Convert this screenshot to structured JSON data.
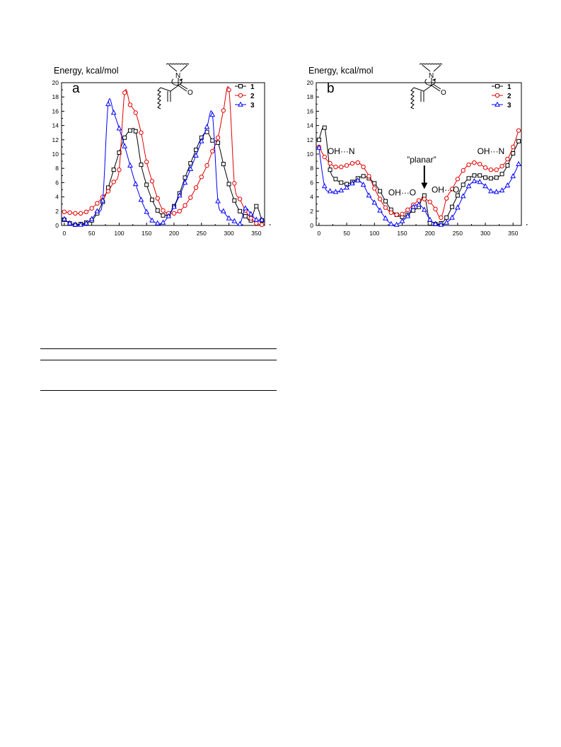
{
  "chart_data": [
    {
      "type": "line",
      "panel_label": "a",
      "ylabel": "Energy, kcal/mol",
      "xlim": [
        -5,
        365
      ],
      "ylim": [
        0,
        20
      ],
      "x_ticks": [
        "0",
        "50",
        "100",
        "150",
        "200",
        "250",
        "300",
        "350"
      ],
      "y_ticks": [
        "0",
        "2",
        "4",
        "6",
        "8",
        "10",
        "12",
        "14",
        "16",
        "18",
        "20"
      ],
      "legend": {
        "position": "top-right",
        "entries": [
          "1",
          "2",
          "3"
        ]
      },
      "series": [
        {
          "name": "1",
          "color": "#000000",
          "marker": "square",
          "x": [
            0,
            10,
            20,
            30,
            40,
            50,
            60,
            70,
            80,
            90,
            100,
            110,
            120,
            130,
            140,
            150,
            160,
            170,
            180,
            190,
            200,
            210,
            220,
            230,
            240,
            250,
            260,
            270,
            280,
            290,
            300,
            310,
            320,
            330,
            340,
            350,
            360
          ],
          "y": [
            0.8,
            0.3,
            0.1,
            0.2,
            0.4,
            0.7,
            1.7,
            3.3,
            5.3,
            7.8,
            10.2,
            12.3,
            13.3,
            13.2,
            8.5,
            5.7,
            3.6,
            2.1,
            1.4,
            1.6,
            2.7,
            4.5,
            6.7,
            8.7,
            10.6,
            12.3,
            13.1,
            11.9,
            11.6,
            8.6,
            5.8,
            3.5,
            2.0,
            1.3,
            0.7,
            2.7,
            0.7
          ]
        },
        {
          "name": "2",
          "color": "#e00000",
          "marker": "circle",
          "x": [
            0,
            10,
            20,
            30,
            40,
            50,
            60,
            70,
            80,
            90,
            100,
            110,
            120,
            130,
            140,
            150,
            160,
            170,
            180,
            190,
            200,
            210,
            220,
            230,
            240,
            250,
            260,
            270,
            280,
            290,
            300,
            310,
            320,
            330,
            340,
            350,
            360
          ],
          "y": [
            1.9,
            1.8,
            1.7,
            1.7,
            1.9,
            2.4,
            3.1,
            4.0,
            4.8,
            6.1,
            7.8,
            18.6,
            16.9,
            15.8,
            13.0,
            8.9,
            6.2,
            3.8,
            2.1,
            1.7,
            1.7,
            2.0,
            2.8,
            3.9,
            5.3,
            6.8,
            8.4,
            10.4,
            12.3,
            16.1,
            19.0,
            5.9,
            3.7,
            2.1,
            1.0,
            0.3,
            0.1
          ]
        },
        {
          "name": "3",
          "color": "#0000ff",
          "marker": "triangle",
          "x": [
            0,
            10,
            20,
            30,
            40,
            50,
            60,
            70,
            80,
            90,
            100,
            110,
            120,
            130,
            140,
            150,
            160,
            170,
            180,
            190,
            200,
            210,
            220,
            230,
            240,
            250,
            260,
            270,
            280,
            290,
            300,
            310,
            320,
            330,
            340,
            350,
            360
          ],
          "y": [
            0.9,
            0.3,
            0.1,
            0.1,
            0.3,
            0.9,
            2.0,
            3.5,
            17.0,
            15.8,
            13.6,
            11.1,
            8.4,
            5.8,
            3.6,
            1.9,
            0.7,
            0.3,
            0.4,
            1.3,
            2.6,
            4.2,
            6.0,
            7.9,
            9.8,
            11.8,
            13.8,
            15.5,
            3.4,
            2.0,
            1.0,
            0.6,
            0.2,
            2.4,
            1.6,
            0.8,
            0.8
          ]
        }
      ]
    },
    {
      "type": "line",
      "panel_label": "b",
      "ylabel": "Energy, kcal/mol",
      "xlim": [
        -5,
        365
      ],
      "ylim": [
        0,
        20
      ],
      "x_ticks": [
        "0",
        "50",
        "100",
        "150",
        "200",
        "250",
        "300",
        "350"
      ],
      "y_ticks": [
        "0",
        "2",
        "4",
        "6",
        "8",
        "10",
        "12",
        "14",
        "16",
        "18",
        "20"
      ],
      "legend": {
        "position": "top-right",
        "entries": [
          "1",
          "2",
          "3"
        ]
      },
      "annotations": [
        {
          "text": "OH···N",
          "x": 40,
          "y": 10.0
        },
        {
          "text": "OH···O",
          "x": 150,
          "y": 4.2
        },
        {
          "text": "”planar”",
          "x": 185,
          "y": 8.8
        },
        {
          "text": "OH···O",
          "x": 228,
          "y": 4.6
        },
        {
          "text": "OH···N",
          "x": 310,
          "y": 10.0
        }
      ],
      "arrow": {
        "x": 190,
        "y_from": 8.4,
        "y_to": 5.1
      },
      "series": [
        {
          "name": "1",
          "color": "#000000",
          "marker": "square",
          "x": [
            0,
            10,
            20,
            30,
            40,
            50,
            60,
            70,
            80,
            90,
            100,
            110,
            120,
            130,
            140,
            150,
            160,
            170,
            180,
            190,
            200,
            210,
            220,
            230,
            240,
            250,
            260,
            270,
            280,
            290,
            300,
            310,
            320,
            330,
            340,
            350,
            360
          ],
          "y": [
            12.0,
            13.7,
            7.8,
            6.5,
            6.0,
            5.8,
            6.1,
            6.6,
            6.9,
            6.6,
            5.9,
            4.8,
            3.4,
            2.2,
            1.5,
            1.2,
            1.5,
            2.1,
            2.6,
            4.2,
            0.3,
            0.2,
            0.3,
            1.1,
            2.6,
            4.2,
            5.7,
            6.6,
            7.0,
            7.0,
            6.7,
            6.6,
            6.7,
            7.2,
            8.4,
            10.1,
            11.8
          ]
        },
        {
          "name": "2",
          "color": "#e00000",
          "marker": "circle",
          "x": [
            0,
            10,
            20,
            30,
            40,
            50,
            60,
            70,
            80,
            90,
            100,
            110,
            120,
            130,
            140,
            150,
            160,
            170,
            180,
            190,
            200,
            210,
            220,
            230,
            240,
            250,
            260,
            270,
            280,
            290,
            300,
            310,
            320,
            330,
            340,
            350,
            360
          ],
          "y": [
            11.0,
            9.6,
            8.7,
            8.2,
            8.2,
            8.4,
            8.7,
            8.8,
            8.2,
            6.9,
            5.2,
            3.7,
            2.5,
            1.8,
            1.5,
            1.6,
            2.2,
            2.9,
            3.5,
            3.7,
            3.3,
            2.3,
            1.1,
            3.8,
            5.1,
            6.5,
            7.7,
            8.5,
            8.8,
            8.6,
            8.1,
            7.8,
            7.8,
            8.3,
            9.3,
            11.0,
            13.3
          ]
        },
        {
          "name": "3",
          "color": "#0000ff",
          "marker": "triangle",
          "x": [
            0,
            10,
            20,
            30,
            40,
            50,
            60,
            70,
            80,
            90,
            100,
            110,
            120,
            130,
            140,
            150,
            160,
            170,
            180,
            190,
            200,
            210,
            220,
            230,
            240,
            250,
            260,
            270,
            280,
            290,
            300,
            310,
            320,
            330,
            340,
            350,
            360
          ],
          "y": [
            10.9,
            5.5,
            4.8,
            4.7,
            4.9,
            5.3,
            5.9,
            6.3,
            5.7,
            4.2,
            3.2,
            2.1,
            1.0,
            0.2,
            0.1,
            0.6,
            1.3,
            2.6,
            2.9,
            2.2,
            0.8,
            0.2,
            0.1,
            0.4,
            1.1,
            2.5,
            4.1,
            5.5,
            6.2,
            6.1,
            5.5,
            4.8,
            4.7,
            4.9,
            5.6,
            6.9,
            8.6
          ]
        }
      ]
    }
  ]
}
